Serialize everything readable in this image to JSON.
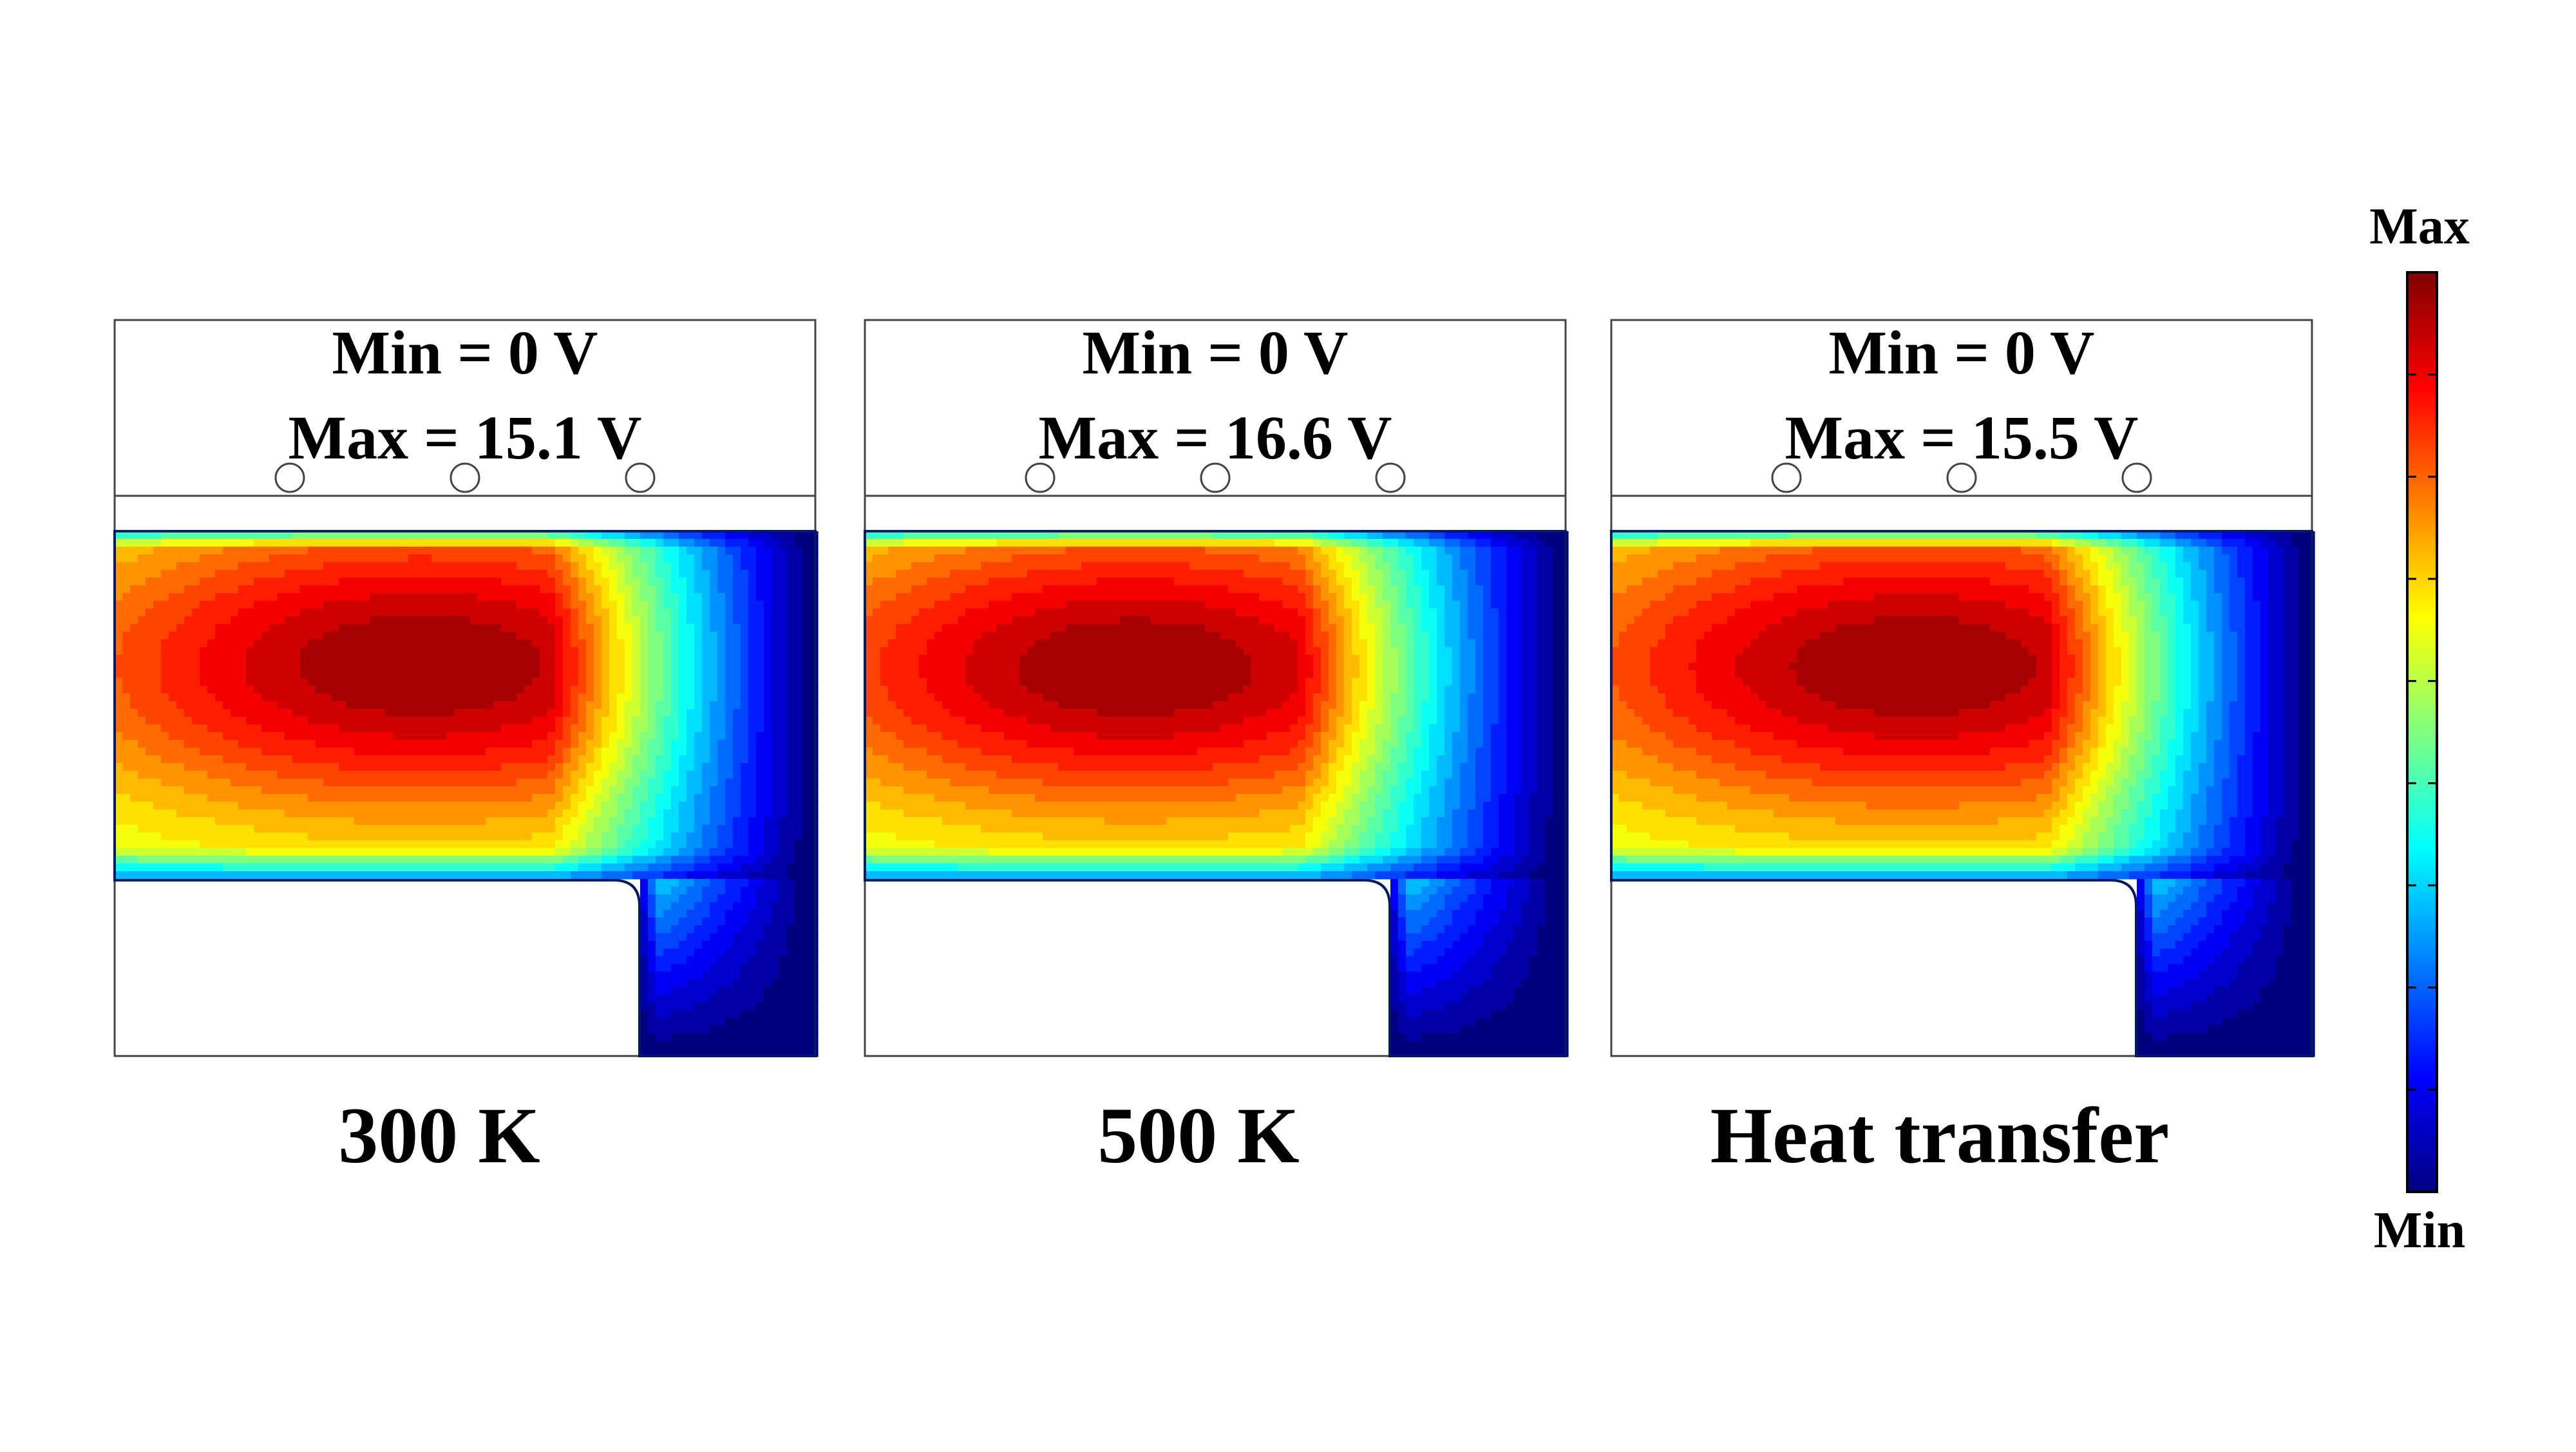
{
  "panels": [
    {
      "min_label": "Min = 0 V",
      "max_label": "Max = 15.1 V",
      "caption": "300 K"
    },
    {
      "min_label": "Min = 0 V",
      "max_label": "Max = 16.6 V",
      "caption": "500 K"
    },
    {
      "min_label": "Min = 0 V",
      "max_label": "Max = 15.5 V",
      "caption": "Heat transfer"
    }
  ],
  "colorbar": {
    "max_label": "Max",
    "min_label": "Min",
    "colors": [
      "#00007f",
      "#0000ff",
      "#007fff",
      "#00ffff",
      "#7fff7f",
      "#ffff00",
      "#ff7f00",
      "#ff0000",
      "#7f0000"
    ]
  }
}
